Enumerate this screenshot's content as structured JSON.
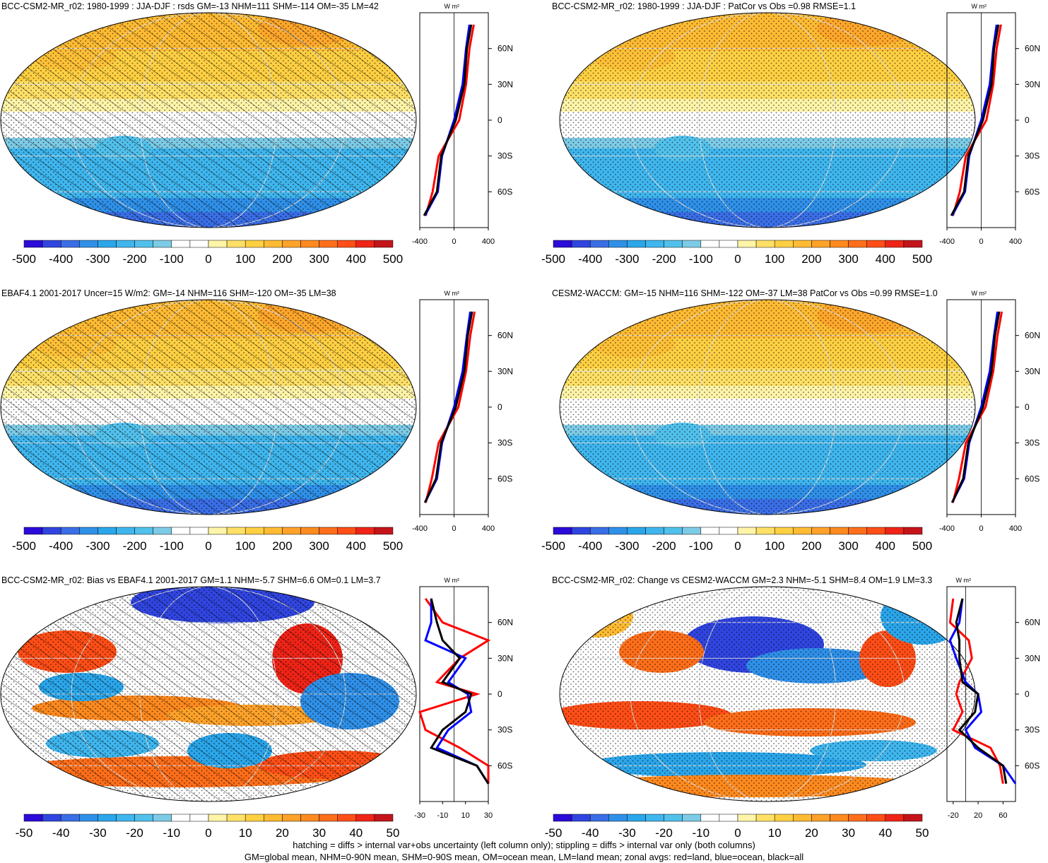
{
  "colors": {
    "palette": [
      "#2a0bd9",
      "#3045e0",
      "#3a6ee6",
      "#2f90e8",
      "#2ba6ea",
      "#3fb6ee",
      "#51c1ec",
      "#7dcbe6",
      "#ffffff",
      "#ffffff",
      "#fff4a8",
      "#ffe066",
      "#ffd042",
      "#ffbb33",
      "#ffa229",
      "#ff8a1f",
      "#ff6e1a",
      "#ff4e17",
      "#ef2417",
      "#c4141a"
    ],
    "zonal_land": "#ff0000",
    "zonal_ocean": "#0000ff",
    "zonal_all": "#000000"
  },
  "panels": [
    {
      "id": "bcc-model-jja-djf",
      "title": "BCC-CSM2-MR_r02: 1980-1999 : JJA-DJF : rsds GM=-13 NHM=111 SHM=-114 OM=-35 LM=42",
      "colorbar_labels": [
        "-500",
        "-400",
        "-300",
        "-200",
        "-100",
        "0",
        "100",
        "200",
        "300",
        "400",
        "500"
      ],
      "zonal_units": "W m²",
      "zonal_xticks": [
        "-400",
        "0",
        "400"
      ],
      "zonal_xrange": [
        -400,
        400
      ],
      "lat_ticks": [
        "60N",
        "30N",
        "0",
        "30S",
        "60S"
      ],
      "map_style": "seasonal",
      "hatched": true
    },
    {
      "id": "bcc-model-patcor",
      "title": "BCC-CSM2-MR_r02: 1980-1999 : JJA-DJF : PatCor vs Obs =0.98 RMSE=1.1",
      "colorbar_labels": [
        "-500",
        "-400",
        "-300",
        "-200",
        "-100",
        "0",
        "100",
        "200",
        "300",
        "400",
        "500"
      ],
      "zonal_units": "W m²",
      "zonal_xticks": [
        "-400",
        "0",
        "400"
      ],
      "zonal_xrange": [
        -400,
        400
      ],
      "lat_ticks": [
        "60N",
        "30N",
        "0",
        "30S",
        "60S"
      ],
      "map_style": "seasonal",
      "hatched": false
    },
    {
      "id": "ebaf-obs",
      "title": "EBAF4.1 2001-2017 Uncer=15 W/m2: GM=-14 NHM=116 SHM=-120 OM=-35 LM=38",
      "colorbar_labels": [
        "-500",
        "-400",
        "-300",
        "-200",
        "-100",
        "0",
        "100",
        "200",
        "300",
        "400",
        "500"
      ],
      "zonal_units": "W m²",
      "zonal_xticks": [
        "-400",
        "0",
        "400"
      ],
      "zonal_xrange": [
        -400,
        400
      ],
      "lat_ticks": [
        "60N",
        "30N",
        "0",
        "30S",
        "60S"
      ],
      "map_style": "seasonal",
      "hatched": true
    },
    {
      "id": "cesm2-waccm",
      "title": "CESM2-WACCM: GM=-15 NHM=116 SHM=-122 OM=-37 LM=38 PatCor vs Obs =0.99 RMSE=1.0",
      "colorbar_labels": [
        "-500",
        "-400",
        "-300",
        "-200",
        "-100",
        "0",
        "100",
        "200",
        "300",
        "400",
        "500"
      ],
      "zonal_units": "W m²",
      "zonal_xticks": [
        "-400",
        "0",
        "400"
      ],
      "zonal_xrange": [
        -400,
        400
      ],
      "lat_ticks": [
        "60N",
        "30N",
        "0",
        "30S",
        "60S"
      ],
      "map_style": "seasonal",
      "hatched": false
    },
    {
      "id": "bias-vs-ebaf",
      "title": "BCC-CSM2-MR_r02: Bias vs EBAF4.1 2001-2017 GM=1.1 NHM=-5.7 SHM=6.6 OM=0.1 LM=3.7",
      "colorbar_labels": [
        "-50",
        "-40",
        "-30",
        "-20",
        "-10",
        "0",
        "10",
        "20",
        "30",
        "40",
        "50"
      ],
      "zonal_units": "W m²",
      "zonal_xticks": [
        "-30",
        "-10",
        "10",
        "30"
      ],
      "zonal_xrange": [
        -30,
        30
      ],
      "lat_ticks": [
        "60N",
        "30N",
        "0",
        "30S",
        "60S"
      ],
      "map_style": "bias",
      "hatched": true
    },
    {
      "id": "change-vs-cesm2",
      "title": "BCC-CSM2-MR_r02: Change vs CESM2-WACCM GM=2.3 NHM=-5.1 SHM=8.4 OM=1.9 LM=3.3",
      "colorbar_labels": [
        "-50",
        "-40",
        "-30",
        "-20",
        "-10",
        "0",
        "10",
        "20",
        "30",
        "40",
        "50"
      ],
      "zonal_units": "W m²",
      "zonal_xticks": [
        "-20",
        "20",
        "60"
      ],
      "zonal_xrange": [
        -30,
        80
      ],
      "lat_ticks": [
        "60N",
        "30N",
        "0",
        "30S",
        "60S"
      ],
      "map_style": "change",
      "hatched": false
    }
  ],
  "footer": {
    "line1": "hatching = diffs > internal var+obs uncertainty (left column only); stippling = diffs > internal var only (both columns)",
    "line2": "GM=global mean, NHM=0-90N mean, SHM=0-90S mean, OM=ocean mean, LM=land mean; zonal avgs: red=land, blue=ocean, black=all"
  },
  "chart_data": [
    {
      "type": "heatmap",
      "title": "BCC-CSM2-MR_r02: 1980-1999 : JJA-DJF : rsds GM=-13 NHM=111 SHM=-114 OM=-35 LM=42",
      "colorbar": [
        -500,
        -400,
        -300,
        -200,
        -100,
        0,
        100,
        200,
        300,
        400,
        500
      ],
      "zonal_mean": {
        "lat": [
          80,
          60,
          30,
          0,
          -30,
          -60,
          -80
        ],
        "all": [
          200,
          150,
          120,
          20,
          -150,
          -200,
          -350
        ],
        "land": [
          230,
          180,
          140,
          60,
          -180,
          -250,
          -330
        ],
        "ocean": [
          180,
          140,
          100,
          0,
          -140,
          -190,
          -340
        ]
      }
    },
    {
      "type": "heatmap",
      "title": "BCC-CSM2-MR_r02: 1980-1999 : JJA-DJF : PatCor vs Obs =0.98 RMSE=1.1",
      "colorbar": [
        -500,
        -400,
        -300,
        -200,
        -100,
        0,
        100,
        200,
        300,
        400,
        500
      ],
      "zonal_mean": {
        "lat": [
          80,
          60,
          30,
          0,
          -30,
          -60,
          -80
        ],
        "all": [
          200,
          150,
          120,
          20,
          -150,
          -200,
          -350
        ],
        "land": [
          230,
          180,
          140,
          60,
          -180,
          -250,
          -330
        ],
        "ocean": [
          180,
          140,
          100,
          0,
          -140,
          -190,
          -340
        ]
      }
    },
    {
      "type": "heatmap",
      "title": "EBAF4.1 2001-2017 Uncer=15 W/m2: GM=-14 NHM=116 SHM=-120 OM=-35 LM=38",
      "colorbar": [
        -500,
        -400,
        -300,
        -200,
        -100,
        0,
        100,
        200,
        300,
        400,
        500
      ],
      "zonal_mean": {
        "lat": [
          80,
          60,
          30,
          0,
          -30,
          -60,
          -80
        ],
        "all": [
          210,
          160,
          120,
          20,
          -150,
          -210,
          -340
        ],
        "land": [
          240,
          190,
          140,
          50,
          -180,
          -260,
          -330
        ],
        "ocean": [
          190,
          150,
          100,
          0,
          -140,
          -200,
          -340
        ]
      }
    },
    {
      "type": "heatmap",
      "title": "CESM2-WACCM: GM=-15 NHM=116 SHM=-122 OM=-37 LM=38 PatCor vs Obs =0.99 RMSE=1.0",
      "colorbar": [
        -500,
        -400,
        -300,
        -200,
        -100,
        0,
        100,
        200,
        300,
        400,
        500
      ],
      "zonal_mean": {
        "lat": [
          80,
          60,
          30,
          0,
          -30,
          -60,
          -80
        ],
        "all": [
          210,
          160,
          120,
          20,
          -150,
          -210,
          -340
        ],
        "land": [
          240,
          190,
          140,
          50,
          -180,
          -260,
          -330
        ],
        "ocean": [
          190,
          150,
          100,
          0,
          -140,
          -200,
          -340
        ]
      }
    },
    {
      "type": "heatmap",
      "title": "BCC-CSM2-MR_r02: Bias vs EBAF4.1 2001-2017 GM=1.1 NHM=-5.7 SHM=6.6 OM=0.1 LM=3.7",
      "colorbar": [
        -50,
        -40,
        -30,
        -20,
        -10,
        0,
        10,
        20,
        30,
        40,
        50
      ],
      "zonal_mean": {
        "lat": [
          80,
          60,
          45,
          30,
          10,
          0,
          -15,
          -30,
          -45,
          -60,
          -75
        ],
        "all": [
          -20,
          -15,
          -10,
          5,
          -10,
          15,
          10,
          -10,
          -20,
          20,
          30
        ],
        "land": [
          -25,
          -10,
          30,
          5,
          -15,
          20,
          -30,
          -25,
          5,
          30,
          30
        ],
        "ocean": [
          -20,
          -20,
          -25,
          10,
          -5,
          12,
          15,
          -5,
          -15,
          20,
          30
        ]
      }
    },
    {
      "type": "heatmap",
      "title": "BCC-CSM2-MR_r02: Change vs CESM2-WACCM GM=2.3 NHM=-5.1 SHM=8.4 OM=1.9 LM=3.3",
      "colorbar": [
        -50,
        -40,
        -30,
        -20,
        -10,
        0,
        10,
        20,
        30,
        40,
        50
      ],
      "zonal_mean": {
        "lat": [
          80,
          60,
          45,
          30,
          10,
          0,
          -15,
          -30,
          -45,
          -60,
          -75
        ],
        "all": [
          -5,
          -15,
          -10,
          -10,
          -5,
          20,
          15,
          -10,
          20,
          60,
          65
        ],
        "land": [
          -20,
          -25,
          5,
          10,
          -10,
          -15,
          -5,
          -20,
          40,
          55,
          60
        ],
        "ocean": [
          -5,
          -10,
          -25,
          -15,
          0,
          20,
          25,
          0,
          15,
          60,
          80
        ]
      }
    }
  ]
}
